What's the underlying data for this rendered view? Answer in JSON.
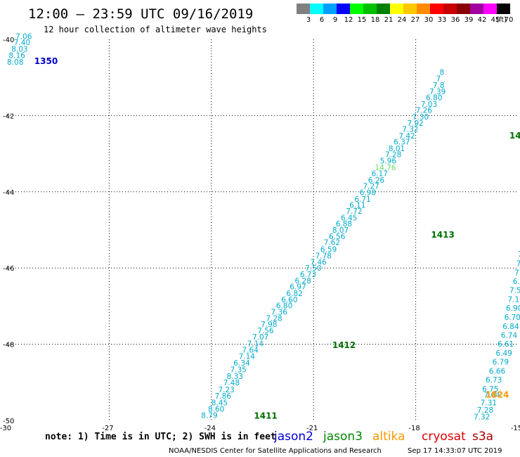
{
  "header": {
    "title": "12:00 – 23:59 UTC 09/16/2019",
    "subtitle": "12 hour collection of altimeter wave heights"
  },
  "legend": {
    "unit": "(ft)",
    "bins": [
      {
        "label": "3",
        "color": "#808080"
      },
      {
        "label": "6",
        "color": "#00ffff"
      },
      {
        "label": "9",
        "color": "#00a0ff"
      },
      {
        "label": "12",
        "color": "#0000ff"
      },
      {
        "label": "15",
        "color": "#00ff00"
      },
      {
        "label": "18",
        "color": "#00c000"
      },
      {
        "label": "21",
        "color": "#008000"
      },
      {
        "label": "24",
        "color": "#ffff00"
      },
      {
        "label": "27",
        "color": "#ffc800"
      },
      {
        "label": "30",
        "color": "#ff8c00"
      },
      {
        "label": "33",
        "color": "#ff0000"
      },
      {
        "label": "36",
        "color": "#c80000"
      },
      {
        "label": "39",
        "color": "#8b0000"
      },
      {
        "label": "42",
        "color": "#a000a0"
      },
      {
        "label": "45",
        "color": "#ff00ff"
      },
      {
        "label": "70",
        "color": "#000000"
      }
    ]
  },
  "axes": {
    "lon_ticks": [
      {
        "value": -30,
        "label": "-30"
      },
      {
        "value": -27,
        "label": "-27"
      },
      {
        "value": -24,
        "label": "-24"
      },
      {
        "value": -21,
        "label": "-21"
      },
      {
        "value": -18,
        "label": "-18"
      },
      {
        "value": -15,
        "label": "-15"
      }
    ],
    "lat_ticks": [
      {
        "value": -40,
        "label": "-40"
      },
      {
        "value": -42,
        "label": "-42"
      },
      {
        "value": -44,
        "label": "-44"
      },
      {
        "value": -46,
        "label": "-46"
      },
      {
        "value": -48,
        "label": "-48"
      },
      {
        "value": -50,
        "label": "-50"
      }
    ],
    "lon_range": [
      -30,
      -15
    ],
    "lat_range": [
      -50,
      -40
    ],
    "grid": "dotted"
  },
  "passes": [
    {
      "label": "1350",
      "color": "#0000cc",
      "lon": -29.2,
      "lat": -40.65
    },
    {
      "label": "1411",
      "color": "#007000",
      "lon": -22.75,
      "lat": -49.95
    },
    {
      "label": "1412",
      "color": "#007000",
      "lon": -20.45,
      "lat": -48.1
    },
    {
      "label": "1413",
      "color": "#007000",
      "lon": -17.55,
      "lat": -45.2
    },
    {
      "label": "1414",
      "color": "#007000",
      "lon": -15.25,
      "lat": -42.6
    },
    {
      "label": "1824",
      "color": "#ff9900",
      "lon": -15.95,
      "lat": -49.4
    }
  ],
  "chart_data": {
    "type": "scatter",
    "title": "12:00 – 23:59 UTC 09/16/2019",
    "subtitle": "12 hour collection of altimeter wave heights",
    "xlim": [
      -30,
      -15
    ],
    "ylim": [
      -50,
      -40
    ],
    "series": [
      {
        "name": "1350",
        "color": "#00aacc",
        "points": [
          {
            "lon": -29.75,
            "lat": -39.99,
            "v": "7.06"
          },
          {
            "lon": -29.8,
            "lat": -40.15,
            "v": "7.40"
          },
          {
            "lon": -29.87,
            "lat": -40.32,
            "v": "8.03"
          },
          {
            "lon": -29.95,
            "lat": -40.49,
            "v": "8.16"
          },
          {
            "lon": -30.0,
            "lat": -40.66,
            "v": "8.08"
          }
        ]
      },
      {
        "name": "1411-1414",
        "color": "#00aacc",
        "points": [
          {
            "lon": -24.3,
            "lat": -49.94,
            "v": "8.79"
          },
          {
            "lon": -24.1,
            "lat": -49.77,
            "v": "8.60"
          },
          {
            "lon": -24.0,
            "lat": -49.6,
            "v": "8.45"
          },
          {
            "lon": -23.9,
            "lat": -49.43,
            "v": "7.86"
          },
          {
            "lon": -23.8,
            "lat": -49.26,
            "v": "7.23"
          },
          {
            "lon": -23.65,
            "lat": -49.08,
            "v": "7.48"
          },
          {
            "lon": -23.55,
            "lat": -48.91,
            "v": "8.33"
          },
          {
            "lon": -23.45,
            "lat": -48.74,
            "v": "7.35"
          },
          {
            "lon": -23.35,
            "lat": -48.56,
            "v": "6.34"
          },
          {
            "lon": -23.2,
            "lat": -48.39,
            "v": "7.14"
          },
          {
            "lon": -23.1,
            "lat": -48.22,
            "v": "7.64"
          },
          {
            "lon": -22.95,
            "lat": -48.05,
            "v": "7.14"
          },
          {
            "lon": -22.8,
            "lat": -47.88,
            "v": "7.07"
          },
          {
            "lon": -22.65,
            "lat": -47.71,
            "v": "7.56"
          },
          {
            "lon": -22.55,
            "lat": -47.55,
            "v": "7.98"
          },
          {
            "lon": -22.4,
            "lat": -47.39,
            "v": "7.28"
          },
          {
            "lon": -22.25,
            "lat": -47.22,
            "v": "7.36"
          },
          {
            "lon": -22.1,
            "lat": -47.06,
            "v": "6.80"
          },
          {
            "lon": -21.95,
            "lat": -46.9,
            "v": "6.60"
          },
          {
            "lon": -21.8,
            "lat": -46.73,
            "v": "6.82"
          },
          {
            "lon": -21.7,
            "lat": -46.56,
            "v": "6.97"
          },
          {
            "lon": -21.55,
            "lat": -46.4,
            "v": "6.28"
          },
          {
            "lon": -21.4,
            "lat": -46.24,
            "v": "6.73"
          },
          {
            "lon": -21.25,
            "lat": -46.07,
            "v": "7.50"
          },
          {
            "lon": -21.1,
            "lat": -45.91,
            "v": "7.46"
          },
          {
            "lon": -20.95,
            "lat": -45.75,
            "v": "7.78"
          },
          {
            "lon": -20.8,
            "lat": -45.58,
            "v": "6.59"
          },
          {
            "lon": -20.7,
            "lat": -45.4,
            "v": "7.62"
          },
          {
            "lon": -20.55,
            "lat": -45.24,
            "v": "6.56"
          },
          {
            "lon": -20.45,
            "lat": -45.07,
            "v": "8.07"
          },
          {
            "lon": -20.35,
            "lat": -44.91,
            "v": "6.88"
          },
          {
            "lon": -20.2,
            "lat": -44.75,
            "v": "6.45"
          },
          {
            "lon": -20.05,
            "lat": -44.58,
            "v": "7.72"
          },
          {
            "lon": -19.95,
            "lat": -44.42,
            "v": "6.11"
          },
          {
            "lon": -19.8,
            "lat": -44.26,
            "v": "6.71"
          },
          {
            "lon": -19.65,
            "lat": -44.09,
            "v": "6.98"
          },
          {
            "lon": -19.55,
            "lat": -43.92,
            "v": "7.27"
          },
          {
            "lon": -19.4,
            "lat": -43.76,
            "v": "6.26"
          },
          {
            "lon": -19.3,
            "lat": -43.59,
            "v": "6.17"
          },
          {
            "lon": -19.2,
            "lat": -43.43,
            "v": "14.76",
            "color": "#66dd66"
          },
          {
            "lon": -19.05,
            "lat": -43.26,
            "v": "5.96"
          },
          {
            "lon": -18.9,
            "lat": -43.09,
            "v": "7.28"
          },
          {
            "lon": -18.8,
            "lat": -42.93,
            "v": "8.01"
          },
          {
            "lon": -18.65,
            "lat": -42.76,
            "v": "6.37"
          },
          {
            "lon": -18.5,
            "lat": -42.6,
            "v": "7.42"
          },
          {
            "lon": -18.4,
            "lat": -42.43,
            "v": "7.32"
          },
          {
            "lon": -18.25,
            "lat": -42.27,
            "v": "7.92"
          },
          {
            "lon": -18.1,
            "lat": -42.1,
            "v": "7.30"
          },
          {
            "lon": -18.0,
            "lat": -41.93,
            "v": "7.26"
          },
          {
            "lon": -17.85,
            "lat": -41.77,
            "v": "7.03"
          },
          {
            "lon": -17.7,
            "lat": -41.6,
            "v": "6.80"
          },
          {
            "lon": -17.6,
            "lat": -41.44,
            "v": "7.39"
          },
          {
            "lon": -17.5,
            "lat": -41.27,
            "v": "7.8"
          },
          {
            "lon": -17.4,
            "lat": -41.1,
            "v": "7"
          },
          {
            "lon": -17.3,
            "lat": -40.93,
            "v": "8"
          }
        ]
      },
      {
        "name": "1824",
        "color": "#00aacc",
        "points": [
          {
            "lon": -16.3,
            "lat": -49.97,
            "v": "7.32"
          },
          {
            "lon": -16.2,
            "lat": -49.8,
            "v": "7.28"
          },
          {
            "lon": -16.1,
            "lat": -49.6,
            "v": "7.31"
          },
          {
            "lon": -16.0,
            "lat": -49.4,
            "v": "7.04"
          },
          {
            "lon": -16.05,
            "lat": -49.24,
            "v": "6.75"
          },
          {
            "lon": -15.95,
            "lat": -49.0,
            "v": "6.73"
          },
          {
            "lon": -15.85,
            "lat": -48.77,
            "v": "6.66"
          },
          {
            "lon": -15.75,
            "lat": -48.53,
            "v": "6.79"
          },
          {
            "lon": -15.65,
            "lat": -48.3,
            "v": "6.49"
          },
          {
            "lon": -15.6,
            "lat": -48.06,
            "v": "6.61"
          },
          {
            "lon": -15.5,
            "lat": -47.83,
            "v": "6.74"
          },
          {
            "lon": -15.45,
            "lat": -47.6,
            "v": "6.84"
          },
          {
            "lon": -15.4,
            "lat": -47.36,
            "v": "6.70"
          },
          {
            "lon": -15.35,
            "lat": -47.12,
            "v": "6.90"
          },
          {
            "lon": -15.3,
            "lat": -46.89,
            "v": "7.11"
          },
          {
            "lon": -15.25,
            "lat": -46.65,
            "v": "7.56"
          },
          {
            "lon": -15.15,
            "lat": -46.42,
            "v": "6.88"
          },
          {
            "lon": -15.1,
            "lat": -46.19,
            "v": "7.08"
          },
          {
            "lon": -15.05,
            "lat": -45.95,
            "v": "7.55"
          },
          {
            "lon": -15.0,
            "lat": -45.7,
            "v": "7.7"
          },
          {
            "lon": -14.95,
            "lat": -45.45,
            "v": "6.9"
          },
          {
            "lon": -14.9,
            "lat": -45.2,
            "v": "7"
          }
        ]
      }
    ]
  },
  "footer": {
    "note": "note: 1) Time is in UTC; 2) SWH is in feet",
    "satellites": [
      {
        "label": "jason2",
        "color": "#0000dd"
      },
      {
        "label": "jason3",
        "color": "#008800"
      },
      {
        "label": "altika",
        "color": "#ff9900"
      },
      {
        "label": "cryosat",
        "color": "#dd0000"
      },
      {
        "label": "s3a",
        "color": "#aa0000"
      }
    ],
    "credit": "NOAA/NESDIS Center for Satellite Applications and Research",
    "timestamp": "Sep 17 14:33:07 UTC 2019"
  }
}
